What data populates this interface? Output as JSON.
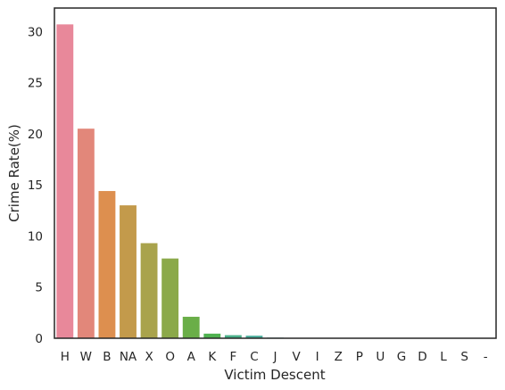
{
  "chart_data": {
    "type": "bar",
    "title": "",
    "xlabel": "Victim Descent",
    "ylabel": "Crime Rate(%)",
    "ylim": [
      0,
      32.3
    ],
    "yticks": [
      0,
      5,
      10,
      15,
      20,
      25,
      30
    ],
    "grid": false,
    "categories": [
      "H",
      "W",
      "B",
      "NA",
      "X",
      "O",
      "A",
      "K",
      "F",
      "C",
      "J",
      "V",
      "I",
      "Z",
      "P",
      "U",
      "G",
      "D",
      "L",
      "S",
      "-"
    ],
    "values": [
      30.7,
      20.5,
      14.4,
      13.0,
      9.3,
      7.8,
      2.1,
      0.45,
      0.3,
      0.25,
      0.06,
      0.03,
      0.01,
      0.01,
      0.01,
      0.01,
      0.01,
      0.005,
      0.005,
      0.003,
      0.001
    ],
    "colors": [
      "#e8889a",
      "#e2877a",
      "#dd8f4f",
      "#c39a4b",
      "#a9a34c",
      "#8ba94a",
      "#6aae48",
      "#4fb150",
      "#4bb08a",
      "#4cae9d",
      "#4cacac",
      "#4daab9",
      "#51a7c7",
      "#5aa2d8",
      "#7a9ae4",
      "#a08ee6",
      "#c282e4",
      "#d979df",
      "#e57ad0",
      "#e77fbc",
      "#e885aa"
    ]
  }
}
